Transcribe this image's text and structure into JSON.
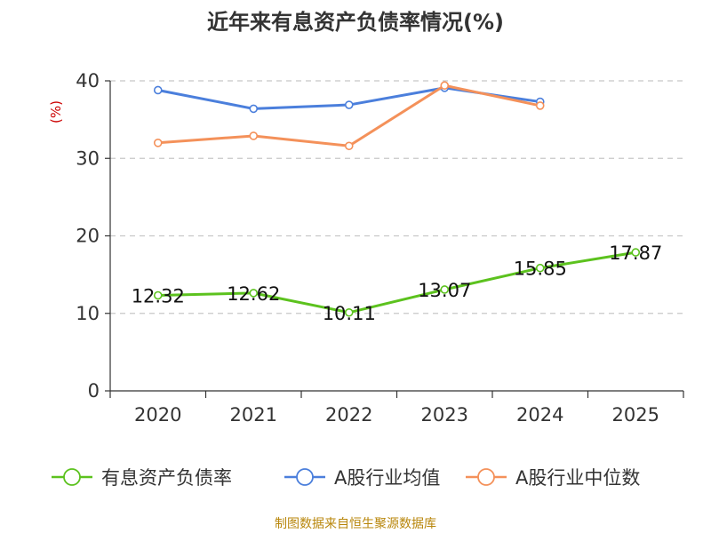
{
  "chart_data": {
    "type": "line",
    "title": "近年来有息资产负债率情况(%)",
    "ylabel": "(%)",
    "xlabel": "",
    "categories": [
      "2020",
      "2021",
      "2022",
      "2023",
      "2024",
      "2025"
    ],
    "ylim": [
      0,
      40
    ],
    "yticks": [
      0,
      10,
      20,
      30,
      40
    ],
    "grid": true,
    "legend_position": "bottom",
    "series": [
      {
        "name": "有息资产负债率",
        "color": "#5cc21e",
        "values": [
          12.32,
          12.62,
          10.11,
          13.07,
          15.85,
          17.87
        ],
        "labels": [
          "12.32",
          "12.62",
          "10.11",
          "13.07",
          "15.85",
          "17.87"
        ],
        "show_labels": true
      },
      {
        "name": "A股行业均值",
        "color": "#4b7fdc",
        "values": [
          38.8,
          36.4,
          36.9,
          39.1,
          37.3,
          null
        ],
        "show_labels": false
      },
      {
        "name": "A股行业中位数",
        "color": "#f4915a",
        "values": [
          32.0,
          32.9,
          31.6,
          39.4,
          36.8,
          null
        ],
        "show_labels": false
      }
    ],
    "source": "制图数据来自恒生聚源数据库"
  }
}
